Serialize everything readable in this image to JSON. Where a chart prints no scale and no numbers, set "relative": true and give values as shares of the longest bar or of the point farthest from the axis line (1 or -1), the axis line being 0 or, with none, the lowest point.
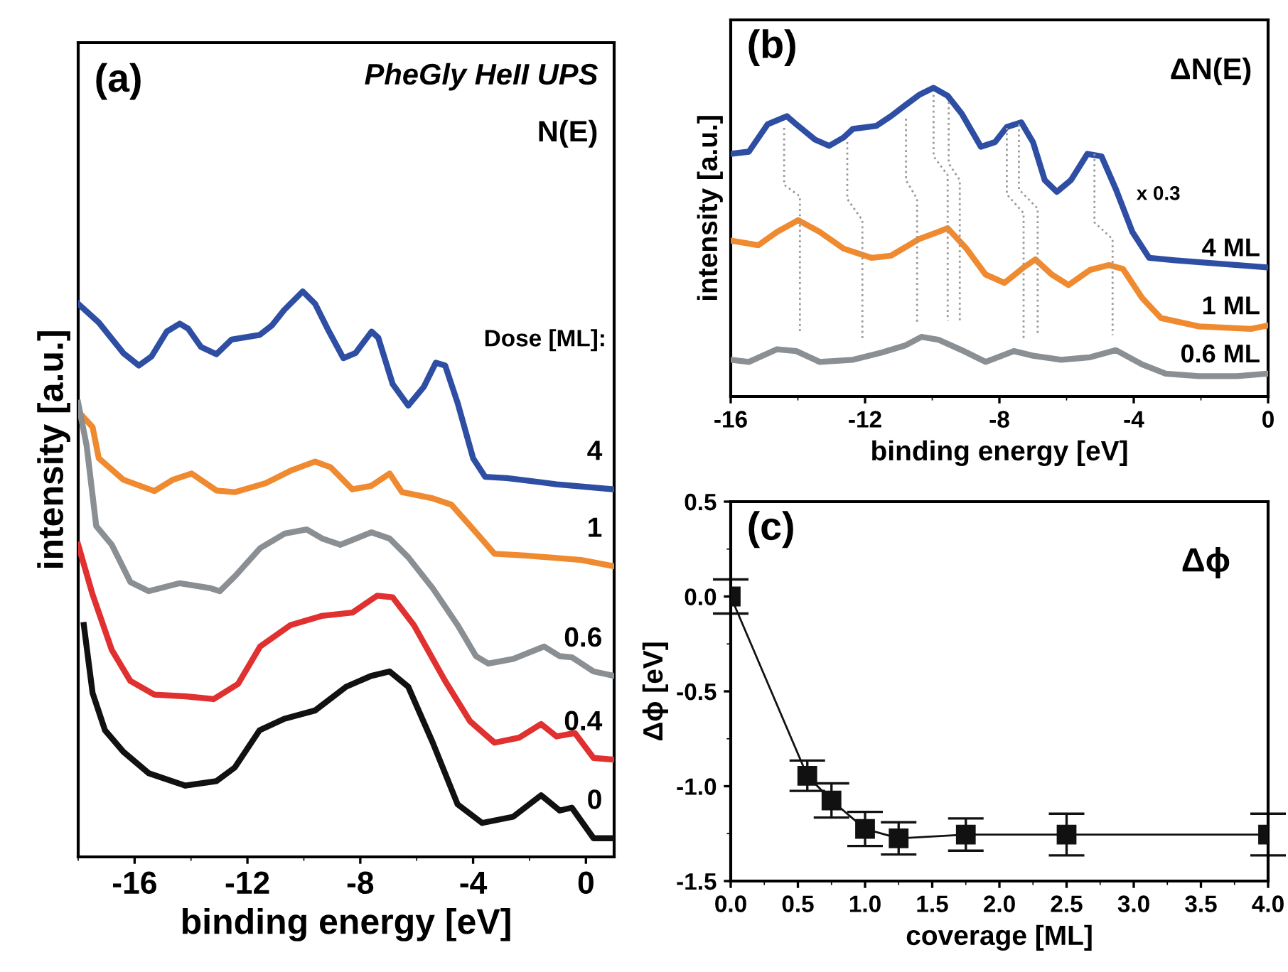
{
  "chart_data": [
    {
      "type": "line",
      "title": "(a)",
      "subtitle": "PheGly HeII UPS",
      "annotations": [
        "N(E)"
      ],
      "xlabel": "binding energy [eV]",
      "ylabel": "intensity [a.u.]",
      "legend_title": "Dose [ML]:",
      "relative": true,
      "tick_labels": "x",
      "xlim": [
        -18,
        1
      ],
      "xticks": [
        -16,
        -12,
        -8,
        -4,
        0
      ],
      "series": [
        {
          "name": "4",
          "color": "#2e4ea3",
          "x": [
            -18.0,
            -17.27,
            -16.4,
            -15.85,
            -15.4,
            -14.86,
            -14.4,
            -14.1,
            -13.65,
            -13.1,
            -12.56,
            -11.57,
            -11.13,
            -10.7,
            -10.04,
            -9.6,
            -9.16,
            -8.6,
            -8.17,
            -7.6,
            -7.36,
            -6.85,
            -6.3,
            -5.75,
            -5.32,
            -4.99,
            -4.55,
            -4.0,
            -3.57,
            -2.8,
            -1.04,
            1.0
          ],
          "values": [
            0.978,
            0.945,
            0.891,
            0.869,
            0.885,
            0.929,
            0.943,
            0.934,
            0.902,
            0.889,
            0.915,
            0.923,
            0.94,
            0.967,
            1.0,
            0.978,
            0.934,
            0.882,
            0.891,
            0.929,
            0.918,
            0.836,
            0.798,
            0.831,
            0.874,
            0.869,
            0.803,
            0.705,
            0.672,
            0.67,
            0.659,
            0.65
          ]
        },
        {
          "name": "1",
          "color": "#f08a30",
          "x": [
            -17.93,
            -17.49,
            -17.27,
            -16.4,
            -15.3,
            -14.64,
            -13.98,
            -13.1,
            -12.45,
            -11.35,
            -10.47,
            -9.6,
            -9.05,
            -8.28,
            -7.62,
            -6.96,
            -6.52,
            -5.43,
            -4.77,
            -3.9,
            -3.24,
            -2.14,
            -0.17,
            1.0
          ],
          "values": [
            0.784,
            0.76,
            0.705,
            0.667,
            0.647,
            0.667,
            0.678,
            0.648,
            0.645,
            0.661,
            0.683,
            0.699,
            0.689,
            0.65,
            0.656,
            0.678,
            0.645,
            0.634,
            0.623,
            0.574,
            0.536,
            0.533,
            0.525,
            0.514
          ]
        },
        {
          "name": "0.6",
          "color": "#8a8f94",
          "x": [
            -18.0,
            -17.7,
            -17.36,
            -16.81,
            -16.15,
            -15.5,
            -14.4,
            -13.3,
            -12.98,
            -12.43,
            -11.55,
            -10.67,
            -9.9,
            -9.35,
            -8.7,
            -7.6,
            -6.96,
            -6.3,
            -5.43,
            -4.55,
            -3.9,
            -3.46,
            -2.58,
            -1.48,
            -0.93,
            -0.5,
            0.27,
            1.0
          ],
          "values": [
            0.803,
            0.727,
            0.585,
            0.552,
            0.486,
            0.47,
            0.484,
            0.475,
            0.47,
            0.497,
            0.546,
            0.572,
            0.579,
            0.563,
            0.552,
            0.574,
            0.563,
            0.53,
            0.475,
            0.41,
            0.355,
            0.342,
            0.35,
            0.372,
            0.355,
            0.353,
            0.328,
            0.32
          ]
        },
        {
          "name": "0.4",
          "color": "#e03030",
          "x": [
            -18.0,
            -17.49,
            -16.81,
            -16.15,
            -15.3,
            -14.2,
            -13.2,
            -12.33,
            -11.55,
            -10.47,
            -9.38,
            -8.28,
            -7.4,
            -6.85,
            -6.1,
            -4.99,
            -4.11,
            -3.24,
            -2.36,
            -1.59,
            -1.04,
            -0.39,
            0.27,
            1.0
          ],
          "values": [
            0.552,
            0.464,
            0.366,
            0.311,
            0.287,
            0.284,
            0.279,
            0.306,
            0.372,
            0.41,
            0.426,
            0.432,
            0.462,
            0.459,
            0.41,
            0.311,
            0.24,
            0.202,
            0.211,
            0.235,
            0.213,
            0.219,
            0.175,
            0.172
          ]
        },
        {
          "name": "0",
          "color": "#111111",
          "x": [
            -17.8,
            -17.49,
            -17.05,
            -16.4,
            -15.5,
            -14.2,
            -13.1,
            -12.45,
            -11.57,
            -10.7,
            -9.6,
            -8.5,
            -7.62,
            -6.96,
            -6.3,
            -5.43,
            -4.55,
            -3.68,
            -2.58,
            -1.59,
            -0.93,
            -0.5,
            0.27,
            1.0
          ],
          "values": [
            0.41,
            0.29,
            0.224,
            0.186,
            0.148,
            0.126,
            0.134,
            0.158,
            0.224,
            0.244,
            0.259,
            0.301,
            0.32,
            0.328,
            0.301,
            0.202,
            0.093,
            0.06,
            0.071,
            0.109,
            0.082,
            0.087,
            0.033,
            0.033
          ]
        }
      ]
    },
    {
      "type": "line",
      "title": "(b)",
      "annotations": [
        "ΔN(E)",
        "x 0.3"
      ],
      "xlabel": "binding energy [eV]",
      "ylabel": "intensity [a.u.]",
      "relative": true,
      "tick_labels": "x",
      "xlim": [
        -16,
        0
      ],
      "xticks": [
        -16,
        -12,
        -8,
        -4,
        0
      ],
      "series": [
        {
          "name": "4 ML",
          "color": "#2e4ea3",
          "x": [
            -16,
            -15.46,
            -14.9,
            -14.33,
            -14.05,
            -13.49,
            -13.07,
            -12.64,
            -12.36,
            -11.66,
            -11.23,
            -10.81,
            -10.39,
            -9.96,
            -9.54,
            -9.12,
            -8.55,
            -8.13,
            -7.78,
            -7.35,
            -7.0,
            -6.65,
            -6.29,
            -5.87,
            -5.38,
            -4.96,
            -4.53,
            -4.04,
            -3.54,
            -2.77,
            0
          ],
          "values": [
            0.786,
            0.793,
            0.882,
            0.908,
            0.882,
            0.832,
            0.812,
            0.839,
            0.867,
            0.877,
            0.908,
            0.943,
            0.977,
            1.0,
            0.974,
            0.916,
            0.809,
            0.824,
            0.873,
            0.888,
            0.824,
            0.701,
            0.663,
            0.701,
            0.786,
            0.778,
            0.671,
            0.533,
            0.449,
            0.441,
            0.418
          ]
        },
        {
          "name": "1 ML",
          "color": "#f08a30",
          "x": [
            -16,
            -15.18,
            -14.62,
            -13.99,
            -13.35,
            -12.64,
            -11.8,
            -11.23,
            -10.39,
            -9.82,
            -9.54,
            -8.98,
            -8.41,
            -7.85,
            -7.28,
            -6.93,
            -6.44,
            -5.94,
            -5.3,
            -4.74,
            -4.32,
            -3.75,
            -3.19,
            -2.06,
            -0.51,
            0
          ],
          "values": [
            0.505,
            0.49,
            0.533,
            0.571,
            0.533,
            0.479,
            0.449,
            0.456,
            0.51,
            0.533,
            0.545,
            0.479,
            0.395,
            0.368,
            0.418,
            0.444,
            0.395,
            0.361,
            0.41,
            0.426,
            0.413,
            0.319,
            0.254,
            0.227,
            0.219,
            0.23
          ]
        },
        {
          "name": "0.6 ML",
          "color": "#8a8f94",
          "x": [
            -16,
            -15.46,
            -14.62,
            -14.05,
            -13.35,
            -12.36,
            -11.51,
            -10.81,
            -10.32,
            -9.82,
            -9.12,
            -8.41,
            -7.57,
            -7.0,
            -6.16,
            -5.3,
            -4.53,
            -3.75,
            -3.05,
            -2.06,
            -0.93,
            0
          ],
          "values": [
            0.119,
            0.112,
            0.153,
            0.147,
            0.112,
            0.119,
            0.142,
            0.165,
            0.193,
            0.184,
            0.15,
            0.112,
            0.147,
            0.132,
            0.119,
            0.127,
            0.15,
            0.104,
            0.074,
            0.066,
            0.066,
            0.074
          ]
        },
        {
          "color": "#9a9a9a",
          "line_style": "dotted",
          "x": [
            -14.41,
            -14.41,
            -13.94,
            -13.94
          ],
          "values": [
            0.87,
            0.686,
            0.648,
            0.204
          ]
        },
        {
          "color": "#9a9a9a",
          "line_style": "dotted",
          "x": [
            -12.53,
            -12.53,
            -12.08,
            -12.08
          ],
          "values": [
            0.824,
            0.64,
            0.571,
            0.181
          ]
        },
        {
          "color": "#9a9a9a",
          "line_style": "dotted",
          "x": [
            -10.78,
            -10.78,
            -10.45,
            -10.45
          ],
          "values": [
            0.9,
            0.701,
            0.64,
            0.234
          ]
        },
        {
          "color": "#9a9a9a",
          "line_style": "dotted",
          "x": [
            -9.96,
            -9.96,
            -9.54,
            -9.54
          ],
          "values": [
            0.977,
            0.778,
            0.717,
            0.245
          ]
        },
        {
          "color": "#9a9a9a",
          "line_style": "dotted",
          "x": [
            -9.51,
            -9.51,
            -9.18,
            -9.18
          ],
          "values": [
            0.954,
            0.755,
            0.701,
            0.245
          ]
        },
        {
          "color": "#9a9a9a",
          "line_style": "dotted",
          "x": [
            -7.78,
            -7.78,
            -7.28,
            -7.28
          ],
          "values": [
            0.87,
            0.655,
            0.594,
            0.188
          ]
        },
        {
          "color": "#9a9a9a",
          "line_style": "dotted",
          "x": [
            -7.42,
            -7.42,
            -6.86,
            -6.86
          ],
          "values": [
            0.882,
            0.671,
            0.609,
            0.196
          ]
        },
        {
          "color": "#9a9a9a",
          "line_style": "dotted",
          "x": [
            -5.17,
            -5.17,
            -4.63,
            -4.63
          ],
          "values": [
            0.786,
            0.564,
            0.51,
            0.199
          ]
        }
      ]
    },
    {
      "type": "line",
      "title": "(c)",
      "annotations": [
        "Δϕ"
      ],
      "xlabel": "coverage [ML]",
      "ylabel": "Δϕ [eV]",
      "xlim": [
        0,
        4.0
      ],
      "xticks": [
        {
          "value": 0,
          "label": "0.0"
        },
        0.5,
        {
          "value": 1,
          "label": "1.0"
        },
        1.5,
        {
          "value": 2,
          "label": "2.0"
        },
        2.5,
        {
          "value": 3,
          "label": "3.0"
        },
        3.5,
        {
          "value": 4,
          "label": "4.0"
        }
      ],
      "ylim": [
        -1.5,
        0.5
      ],
      "yticks": [
        -1.5,
        {
          "value": -1,
          "label": "-1.0"
        },
        -0.5,
        {
          "value": 0,
          "label": "0.0"
        },
        0.5
      ],
      "marker": "square",
      "line_style": "solid",
      "series": [
        {
          "color": "#111111",
          "x": [
            0,
            0.57,
            0.75,
            1.0,
            1.25,
            1.75,
            2.5,
            4.0
          ],
          "values": [
            0,
            -0.945,
            -1.075,
            -1.225,
            -1.275,
            -1.255,
            -1.255,
            -1.255
          ],
          "errors": [
            0.09,
            0.08,
            0.09,
            0.09,
            0.085,
            0.085,
            0.11,
            0.11
          ]
        }
      ]
    }
  ]
}
